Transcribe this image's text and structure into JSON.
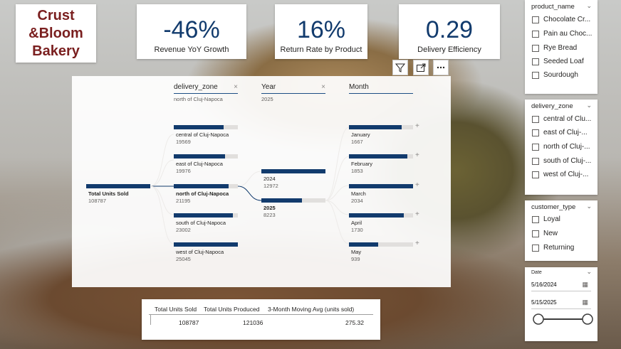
{
  "logo": {
    "line1": "Crust",
    "line2": "&Bloom",
    "line3": "Bakery"
  },
  "kpis": [
    {
      "value": "-46%",
      "label": "Revenue YoY Growth"
    },
    {
      "value": "16%",
      "label": "Return Rate by Product"
    },
    {
      "value": "0.29",
      "label": "Delivery Efficiency"
    }
  ],
  "tree": {
    "levels": [
      {
        "header": "delivery_zone",
        "filter": "north of Cluj-Napoca"
      },
      {
        "header": "Year",
        "filter": "2025"
      },
      {
        "header": "Month",
        "filter": ""
      }
    ],
    "root": {
      "label": "Total Units Sold",
      "value": "108787"
    },
    "zones": [
      {
        "label": "central of Cluj-Napoca",
        "value": "19569",
        "fill": 0.78
      },
      {
        "label": "east of Cluj-Napoca",
        "value": "19976",
        "fill": 0.8
      },
      {
        "label": "north of Cluj-Napoca",
        "value": "21195",
        "fill": 0.85
      },
      {
        "label": "south of Cluj-Napoca",
        "value": "23002",
        "fill": 0.92
      },
      {
        "label": "west of Cluj-Napoca",
        "value": "25045",
        "fill": 1.0
      }
    ],
    "years": [
      {
        "label": "2024",
        "value": "12972",
        "fill": 1.0
      },
      {
        "label": "2025",
        "value": "8223",
        "fill": 0.63
      }
    ],
    "months": [
      {
        "label": "January",
        "value": "1667",
        "fill": 0.82
      },
      {
        "label": "February",
        "value": "1853",
        "fill": 0.91
      },
      {
        "label": "March",
        "value": "2034",
        "fill": 1.0
      },
      {
        "label": "April",
        "value": "1730",
        "fill": 0.85
      },
      {
        "label": "May",
        "value": "939",
        "fill": 0.46
      }
    ]
  },
  "table": {
    "headers": [
      "Total Units Sold",
      "Total Units Produced",
      "3-Month Moving Avg (units sold)"
    ],
    "row": [
      "108787",
      "121036",
      "275.32"
    ]
  },
  "slicers": {
    "product": {
      "title": "product_name",
      "items": [
        "Chocolate Cr...",
        "Pain au Choc...",
        "Rye Bread",
        "Seeded Loaf",
        "Sourdough"
      ]
    },
    "zone": {
      "title": "delivery_zone",
      "items": [
        "central of Clu...",
        "east of Cluj-...",
        "north of Cluj-...",
        "south of Cluj-...",
        "west of Cluj-..."
      ]
    },
    "customer": {
      "title": "customer_type",
      "items": [
        "Loyal",
        "New",
        "Returning"
      ]
    },
    "date": {
      "title": "Date",
      "start": "5/16/2024",
      "end": "5/15/2025",
      "range_start": 0.0,
      "range_end": 1.0
    }
  }
}
